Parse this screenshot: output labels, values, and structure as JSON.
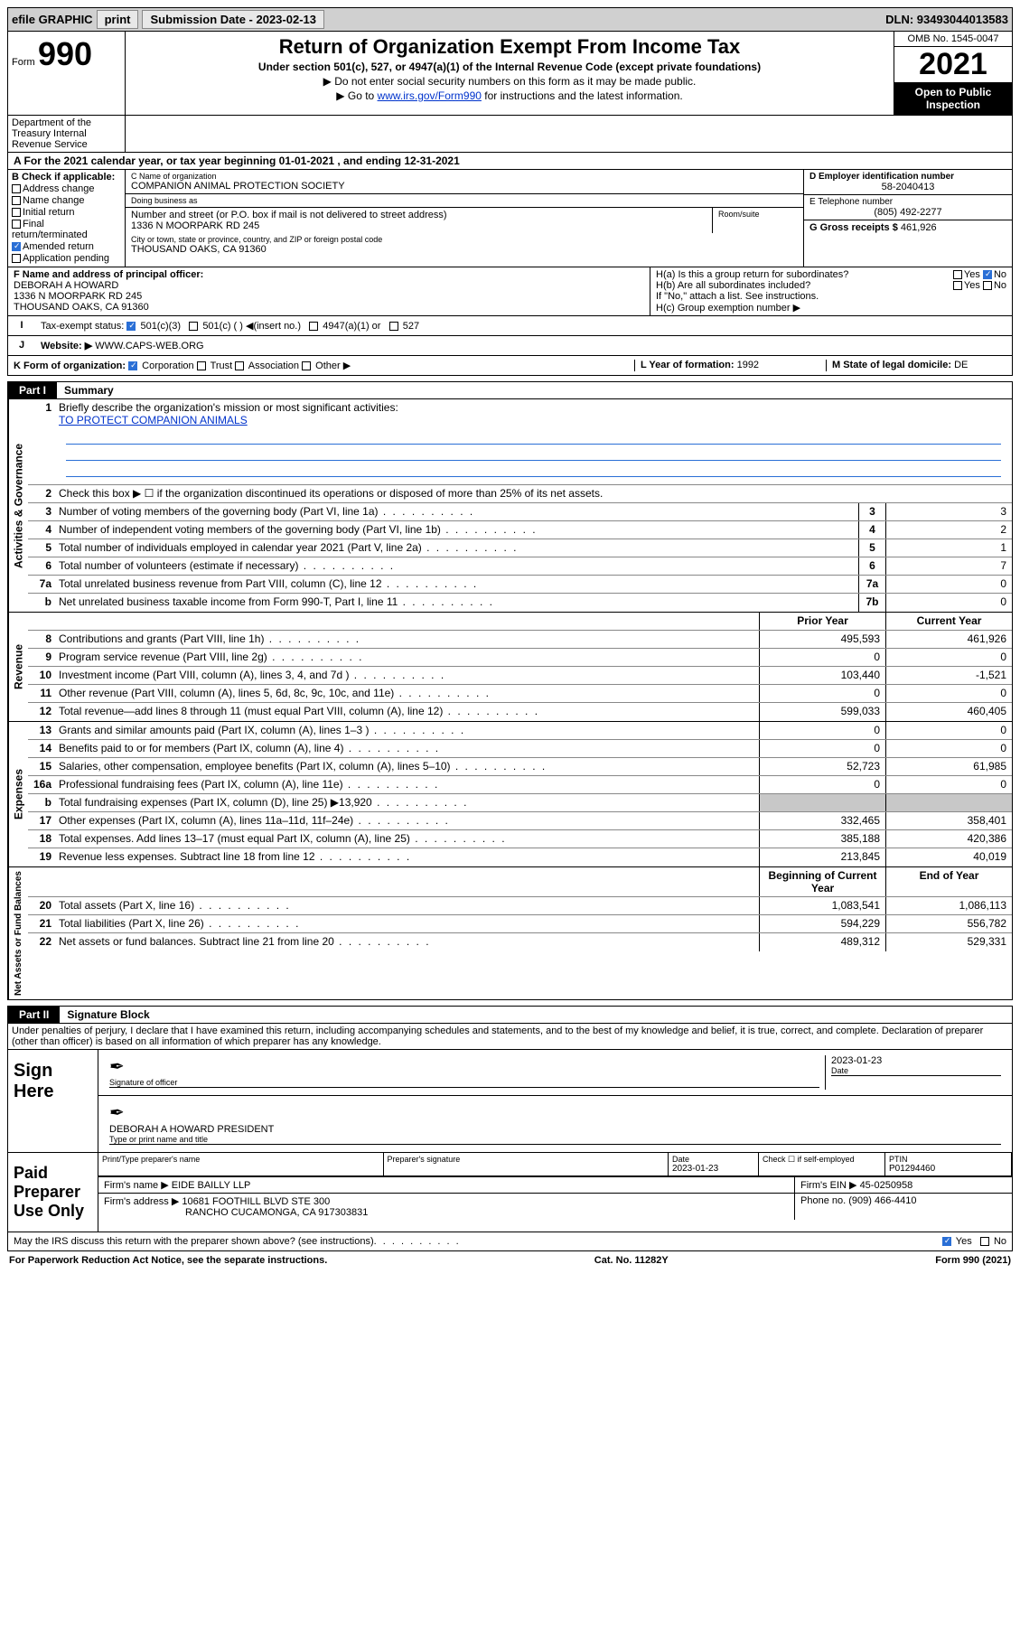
{
  "colors": {
    "link": "#0033cc",
    "black": "#000000",
    "white": "#ffffff",
    "topbar_bg": "#d0d0d0",
    "shaded": "#c8c8c8",
    "check_blue": "#2a6fd6"
  },
  "topbar": {
    "efile": "efile GRAPHIC",
    "print": "print",
    "submission": "Submission Date - 2023-02-13",
    "dln": "DLN: 93493044013583"
  },
  "header": {
    "form_word": "Form",
    "form_num": "990",
    "title": "Return of Organization Exempt From Income Tax",
    "subtitle": "Under section 501(c), 527, or 4947(a)(1) of the Internal Revenue Code (except private foundations)",
    "note1": "▶ Do not enter social security numbers on this form as it may be made public.",
    "note2_pre": "▶ Go to ",
    "note2_link": "www.irs.gov/Form990",
    "note2_post": " for instructions and the latest information.",
    "omb": "OMB No. 1545-0047",
    "year": "2021",
    "open": "Open to Public Inspection",
    "dept": "Department of the Treasury Internal Revenue Service"
  },
  "line_a": "A For the 2021 calendar year, or tax year beginning 01-01-2021   , and ending 12-31-2021",
  "section_b": {
    "title": "B Check if applicable:",
    "checks": [
      {
        "label": "Address change",
        "checked": false
      },
      {
        "label": "Name change",
        "checked": false
      },
      {
        "label": "Initial return",
        "checked": false
      },
      {
        "label": "Final return/terminated",
        "checked": false
      },
      {
        "label": "Amended return",
        "checked": true
      },
      {
        "label": "Application pending",
        "checked": false
      }
    ],
    "c_name_lbl": "C Name of organization",
    "c_name": "COMPANION ANIMAL PROTECTION SOCIETY",
    "dba_lbl": "Doing business as",
    "dba": "",
    "addr_lbl": "Number and street (or P.O. box if mail is not delivered to street address)",
    "room_lbl": "Room/suite",
    "addr": "1336 N MOORPARK RD 245",
    "city_lbl": "City or town, state or province, country, and ZIP or foreign postal code",
    "city": "THOUSAND OAKS, CA  91360",
    "d_ein_lbl": "D Employer identification number",
    "d_ein": "58-2040413",
    "e_tel_lbl": "E Telephone number",
    "e_tel": "(805) 492-2277",
    "g_gross_lbl": "G Gross receipts $",
    "g_gross": "461,926"
  },
  "section_f": {
    "label": "F Name and address of principal officer:",
    "name": "DEBORAH A HOWARD",
    "addr1": "1336 N MOORPARK RD 245",
    "addr2": "THOUSAND OAKS, CA  91360"
  },
  "section_h": {
    "ha": "H(a) Is this a group return for subordinates?",
    "ha_yes": "Yes",
    "ha_no": "No",
    "hb": "H(b) Are all subordinates included?",
    "hb_note": "If \"No,\" attach a list. See instructions.",
    "hc": "H(c) Group exemption number ▶"
  },
  "line_i_label": "I",
  "line_i": {
    "title": "Tax-exempt status:",
    "opt1": "501(c)(3)",
    "opt2": "501(c) (  ) ◀(insert no.)",
    "opt3": "4947(a)(1) or",
    "opt4": "527"
  },
  "line_j_label": "J",
  "line_j": {
    "title": "Website: ▶",
    "url": "WWW.CAPS-WEB.ORG"
  },
  "line_k": {
    "title": "K Form of organization:",
    "corp": "Corporation",
    "trust": "Trust",
    "assoc": "Association",
    "other": "Other ▶",
    "l_year_lbl": "L Year of formation:",
    "l_year": "1992",
    "m_state_lbl": "M State of legal domicile:",
    "m_state": "DE"
  },
  "part1": {
    "tag": "Part I",
    "title": "Summary"
  },
  "governance": {
    "label": "Activities & Governance",
    "q1": "Briefly describe the organization's mission or most significant activities:",
    "mission": "TO PROTECT COMPANION ANIMALS",
    "q2": "Check this box ▶ ☐  if the organization discontinued its operations or disposed of more than 25% of its net assets.",
    "rows": [
      {
        "n": "3",
        "d": "Number of voting members of the governing body (Part VI, line 1a)",
        "box": "3",
        "v": "3"
      },
      {
        "n": "4",
        "d": "Number of independent voting members of the governing body (Part VI, line 1b)",
        "box": "4",
        "v": "2"
      },
      {
        "n": "5",
        "d": "Total number of individuals employed in calendar year 2021 (Part V, line 2a)",
        "box": "5",
        "v": "1"
      },
      {
        "n": "6",
        "d": "Total number of volunteers (estimate if necessary)",
        "box": "6",
        "v": "7"
      },
      {
        "n": "7a",
        "d": "Total unrelated business revenue from Part VIII, column (C), line 12",
        "box": "7a",
        "v": "0"
      },
      {
        "n": "b",
        "d": "Net unrelated business taxable income from Form 990-T, Part I, line 11",
        "box": "7b",
        "v": "0"
      }
    ]
  },
  "revenue": {
    "label": "Revenue",
    "head_prior": "Prior Year",
    "head_current": "Current Year",
    "rows": [
      {
        "n": "8",
        "d": "Contributions and grants (Part VIII, line 1h)",
        "p": "495,593",
        "c": "461,926"
      },
      {
        "n": "9",
        "d": "Program service revenue (Part VIII, line 2g)",
        "p": "0",
        "c": "0"
      },
      {
        "n": "10",
        "d": "Investment income (Part VIII, column (A), lines 3, 4, and 7d )",
        "p": "103,440",
        "c": "-1,521"
      },
      {
        "n": "11",
        "d": "Other revenue (Part VIII, column (A), lines 5, 6d, 8c, 9c, 10c, and 11e)",
        "p": "0",
        "c": "0"
      },
      {
        "n": "12",
        "d": "Total revenue—add lines 8 through 11 (must equal Part VIII, column (A), line 12)",
        "p": "599,033",
        "c": "460,405"
      }
    ]
  },
  "expenses": {
    "label": "Expenses",
    "rows": [
      {
        "n": "13",
        "d": "Grants and similar amounts paid (Part IX, column (A), lines 1–3 )",
        "p": "0",
        "c": "0"
      },
      {
        "n": "14",
        "d": "Benefits paid to or for members (Part IX, column (A), line 4)",
        "p": "0",
        "c": "0"
      },
      {
        "n": "15",
        "d": "Salaries, other compensation, employee benefits (Part IX, column (A), lines 5–10)",
        "p": "52,723",
        "c": "61,985"
      },
      {
        "n": "16a",
        "d": "Professional fundraising fees (Part IX, column (A), line 11e)",
        "p": "0",
        "c": "0"
      },
      {
        "n": "b",
        "d": "Total fundraising expenses (Part IX, column (D), line 25) ▶13,920",
        "p": "",
        "c": "",
        "shaded": true
      },
      {
        "n": "17",
        "d": "Other expenses (Part IX, column (A), lines 11a–11d, 11f–24e)",
        "p": "332,465",
        "c": "358,401"
      },
      {
        "n": "18",
        "d": "Total expenses. Add lines 13–17 (must equal Part IX, column (A), line 25)",
        "p": "385,188",
        "c": "420,386"
      },
      {
        "n": "19",
        "d": "Revenue less expenses. Subtract line 18 from line 12",
        "p": "213,845",
        "c": "40,019"
      }
    ]
  },
  "netassets": {
    "label": "Net Assets or Fund Balances",
    "head_prior": "Beginning of Current Year",
    "head_current": "End of Year",
    "rows": [
      {
        "n": "20",
        "d": "Total assets (Part X, line 16)",
        "p": "1,083,541",
        "c": "1,086,113"
      },
      {
        "n": "21",
        "d": "Total liabilities (Part X, line 26)",
        "p": "594,229",
        "c": "556,782"
      },
      {
        "n": "22",
        "d": "Net assets or fund balances. Subtract line 21 from line 20",
        "p": "489,312",
        "c": "529,331"
      }
    ]
  },
  "part2": {
    "tag": "Part II",
    "title": "Signature Block"
  },
  "penalty": "Under penalties of perjury, I declare that I have examined this return, including accompanying schedules and statements, and to the best of my knowledge and belief, it is true, correct, and complete. Declaration of preparer (other than officer) is based on all information of which preparer has any knowledge.",
  "sign": {
    "label": "Sign Here",
    "sig_of_officer": "Signature of officer",
    "date_lbl": "Date",
    "date": "2023-01-23",
    "name": "DEBORAH A HOWARD  PRESIDENT",
    "type_lbl": "Type or print name and title"
  },
  "preparer": {
    "label": "Paid Preparer Use Only",
    "h_name": "Print/Type preparer's name",
    "h_sig": "Preparer's signature",
    "h_date": "Date",
    "date": "2023-01-23",
    "h_check": "Check ☐ if self-employed",
    "h_ptin": "PTIN",
    "ptin": "P01294460",
    "firm_name_lbl": "Firm's name   ▶",
    "firm_name": "EIDE BAILLY LLP",
    "firm_ein_lbl": "Firm's EIN ▶",
    "firm_ein": "45-0250958",
    "firm_addr_lbl": "Firm's address ▶",
    "firm_addr1": "10681 FOOTHILL BLVD STE 300",
    "firm_addr2": "RANCHO CUCAMONGA, CA  917303831",
    "phone_lbl": "Phone no.",
    "phone": "(909) 466-4410"
  },
  "may_discuss": "May the IRS discuss this return with the preparer shown above? (see instructions)",
  "may_yes": "Yes",
  "may_no": "No",
  "footer": {
    "left": "For Paperwork Reduction Act Notice, see the separate instructions.",
    "mid": "Cat. No. 11282Y",
    "right": "Form 990 (2021)"
  }
}
